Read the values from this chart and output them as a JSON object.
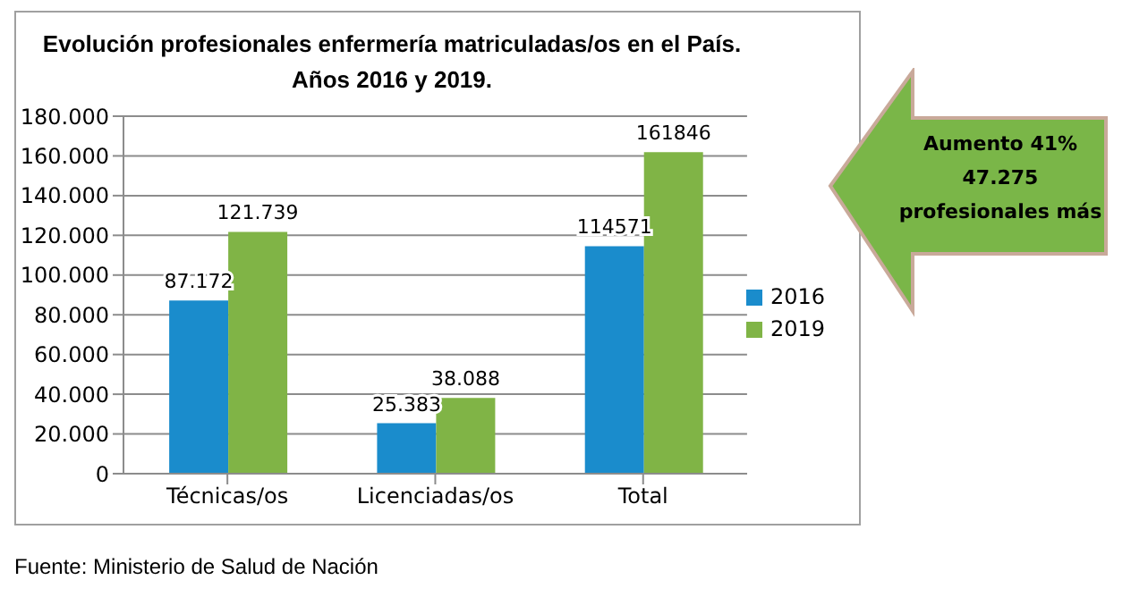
{
  "chart_data": {
    "type": "bar",
    "title": "Evolución profesionales enfermería matriculadas/os en el País.\nAños 2016 y 2019.",
    "categories": [
      "Técnicas/os",
      "Licenciadas/os",
      "Total"
    ],
    "series": [
      {
        "name": "2016",
        "color": "#1a8ccc",
        "values": [
          87172,
          25383,
          114571
        ],
        "value_labels": [
          "87.172",
          "25.383",
          "114571"
        ]
      },
      {
        "name": "2019",
        "color": "#80b446",
        "values": [
          121739,
          38088,
          161846
        ],
        "value_labels": [
          "121.739",
          "38.088",
          "161846"
        ]
      }
    ],
    "ylim": [
      0,
      180000
    ],
    "yticks": [
      {
        "value": 0,
        "label": "0"
      },
      {
        "value": 20000,
        "label": "20.000"
      },
      {
        "value": 40000,
        "label": "40.000"
      },
      {
        "value": 60000,
        "label": "60.000"
      },
      {
        "value": 80000,
        "label": "80.000"
      },
      {
        "value": 100000,
        "label": "100.000"
      },
      {
        "value": 120000,
        "label": "120.000"
      },
      {
        "value": 140000,
        "label": "140.000"
      },
      {
        "value": 160000,
        "label": "160.000"
      },
      {
        "value": 180000,
        "label": "180.000"
      }
    ],
    "grid": "y",
    "legend": "right",
    "annotations": [
      "Aumento 41%\n47.275\nprofesionales más",
      "Fuente: Ministerio de Salud de Nación"
    ]
  }
}
